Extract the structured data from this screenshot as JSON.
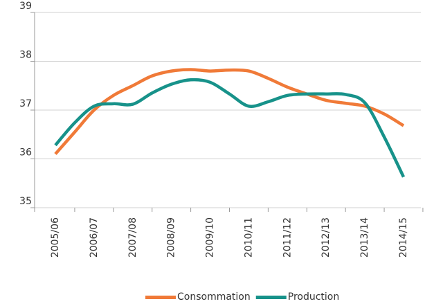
{
  "chart_data": {
    "type": "line",
    "categories": [
      "2005/06",
      null,
      "2006/07",
      null,
      "2007/08",
      null,
      "2008/09",
      null,
      "2009/10",
      null,
      "2010/11",
      null,
      "2011/12",
      null,
      "2012/13",
      null,
      "2013/14",
      null,
      "2014/15"
    ],
    "series": [
      {
        "name": "Consommation",
        "color": "#f07a38",
        "values": [
          36.1,
          36.55,
          37.0,
          37.3,
          37.5,
          37.7,
          37.8,
          37.83,
          37.8,
          37.82,
          37.8,
          37.65,
          37.47,
          37.33,
          37.2,
          37.14,
          37.08,
          36.92,
          36.68
        ]
      },
      {
        "name": "Production",
        "color": "#17928a",
        "values": [
          36.28,
          36.74,
          37.08,
          37.13,
          37.12,
          37.35,
          37.53,
          37.62,
          37.57,
          37.33,
          37.08,
          37.17,
          37.3,
          37.33,
          37.33,
          37.32,
          37.15,
          36.45,
          35.63
        ]
      }
    ],
    "ylim": [
      35,
      39
    ],
    "yticks": [
      35,
      36,
      37,
      38,
      39
    ],
    "grid": true,
    "legend": "bottom"
  }
}
